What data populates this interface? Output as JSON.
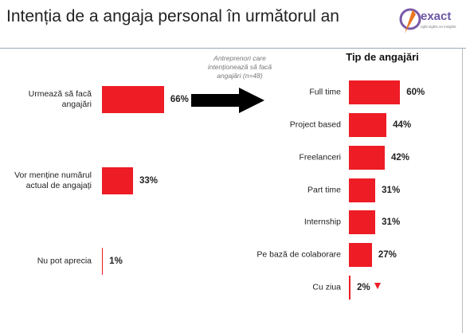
{
  "header": {
    "title": "Intenția de a angaja personal în următorul an",
    "logo": "exact",
    "tagline": "right sights on insights",
    "note": "Antreprenori care intenționează să facă angajări (n=48)"
  },
  "chart_data": [
    {
      "type": "bar",
      "orientation": "horizontal",
      "color": "#ee1c25",
      "categories": [
        "Urmează să facă angajări",
        "Vor menține numărul actual de angajați",
        "Nu pot aprecia"
      ],
      "values": [
        66,
        33,
        1
      ],
      "value_labels": [
        "66%",
        "33%",
        "1%"
      ]
    },
    {
      "type": "bar",
      "orientation": "horizontal",
      "color": "#ee1c25",
      "title": "Tip de angajări",
      "categories": [
        "Full time",
        "Project based",
        "Freelanceri",
        "Part time",
        "Internship",
        "Pe bază de colaborare",
        "Cu ziua"
      ],
      "values": [
        60,
        44,
        42,
        31,
        31,
        27,
        2
      ],
      "value_labels": [
        "60%",
        "44%",
        "42%",
        "31%",
        "31%",
        "27%",
        "2%"
      ]
    }
  ]
}
